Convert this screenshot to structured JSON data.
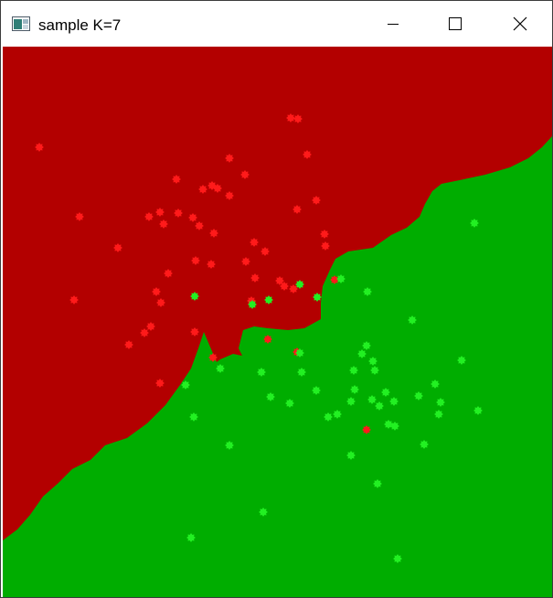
{
  "window": {
    "title": "sample K=7",
    "icon": "app-window-icon",
    "controls": [
      "minimize-icon",
      "maximize-icon",
      "close-icon"
    ]
  },
  "canvas": {
    "description_colors": {
      "class_red_region": "#b30000",
      "class_green_region": "#00ad00",
      "class_red_point": "#ff1a1a",
      "class_green_point": "#22f022"
    }
  }
}
